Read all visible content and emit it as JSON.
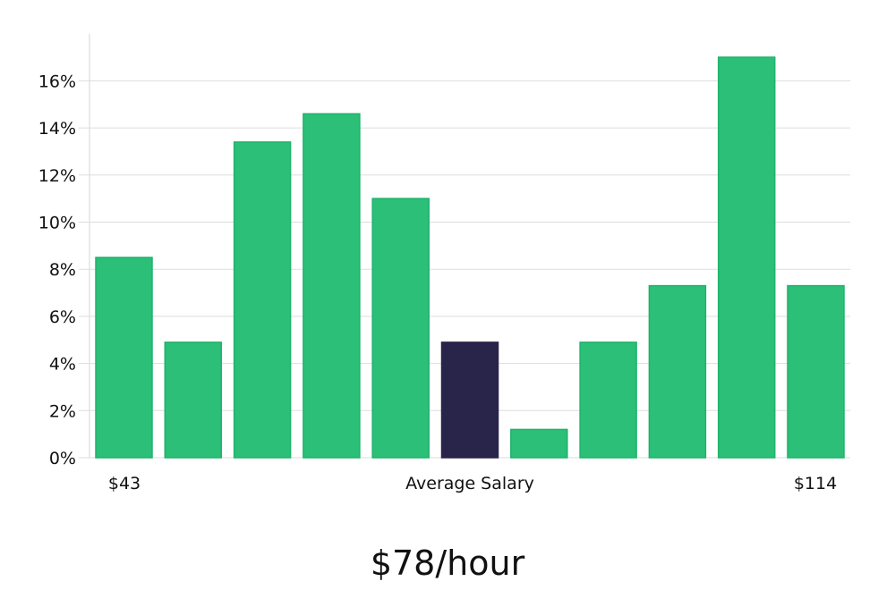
{
  "chart_data": {
    "type": "bar",
    "values": [
      8.5,
      4.9,
      13.4,
      14.6,
      11.0,
      4.9,
      1.2,
      4.9,
      7.3,
      17.0,
      7.3
    ],
    "highlight_index": 5,
    "y_ticks": [
      "0%",
      "2%",
      "4%",
      "6%",
      "8%",
      "10%",
      "12%",
      "14%",
      "16%"
    ],
    "ylim": [
      0,
      18
    ],
    "x_start_label": "$43",
    "x_center_label": "Average Salary",
    "x_end_label": "$114",
    "grid": true,
    "colors": {
      "bar": "#2bbf77",
      "bar_edge": "#1fb36b",
      "highlight": "#29244a"
    }
  },
  "headline": "$78/hour"
}
